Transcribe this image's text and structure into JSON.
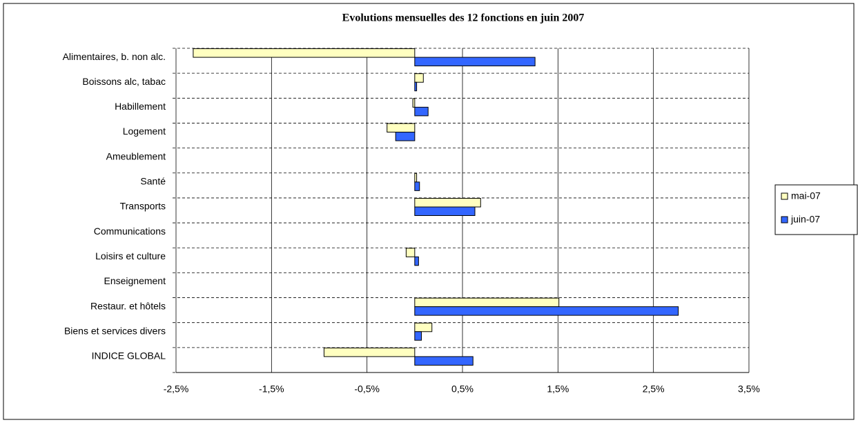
{
  "chart_data": {
    "type": "hbar",
    "title": "Evolutions mensuelles des 12 fonctions en juin 2007",
    "categories": [
      "Alimentaires, b. non alc.",
      "Boissons alc, tabac",
      "Habillement",
      "Logement",
      "Ameublement",
      "Santé",
      "Transports",
      "Communications",
      "Loisirs et culture",
      "Enseignement",
      "Restaur. et hôtels",
      "Biens et services divers",
      "INDICE GLOBAL"
    ],
    "series": [
      {
        "name": "mai-07",
        "color": "#ffffc0",
        "values": [
          -2.32,
          0.09,
          -0.02,
          -0.29,
          0,
          0.02,
          0.69,
          0,
          -0.09,
          0,
          1.51,
          0.18,
          -0.95
        ]
      },
      {
        "name": "juin-07",
        "color": "#3366ff",
        "values": [
          1.26,
          0.02,
          0.14,
          -0.2,
          0,
          0.05,
          0.63,
          0,
          0.04,
          0,
          2.76,
          0.07,
          0.61
        ]
      }
    ],
    "xlim": [
      -2.5,
      3.5
    ],
    "xticks": [
      {
        "value": -2.5,
        "label": "-2,5%"
      },
      {
        "value": -1.5,
        "label": "-1,5%"
      },
      {
        "value": -0.5,
        "label": "-0,5%"
      },
      {
        "value": 0.5,
        "label": "0,5%"
      },
      {
        "value": 1.5,
        "label": "1,5%"
      },
      {
        "value": 2.5,
        "label": "2,5%"
      },
      {
        "value": 3.5,
        "label": "3,5%"
      }
    ],
    "grid": true,
    "legend": "right"
  }
}
